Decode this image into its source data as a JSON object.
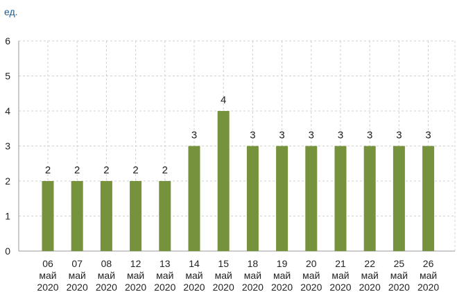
{
  "unit": "ед.",
  "chart_data": {
    "type": "bar",
    "categories": [
      [
        "06",
        "май",
        "2020"
      ],
      [
        "07",
        "май",
        "2020"
      ],
      [
        "08",
        "май",
        "2020"
      ],
      [
        "12",
        "май",
        "2020"
      ],
      [
        "13",
        "май",
        "2020"
      ],
      [
        "14",
        "май",
        "2020"
      ],
      [
        "15",
        "май",
        "2020"
      ],
      [
        "18",
        "май",
        "2020"
      ],
      [
        "19",
        "май",
        "2020"
      ],
      [
        "20",
        "май",
        "2020"
      ],
      [
        "21",
        "май",
        "2020"
      ],
      [
        "22",
        "май",
        "2020"
      ],
      [
        "25",
        "май",
        "2020"
      ],
      [
        "26",
        "май",
        "2020"
      ]
    ],
    "values": [
      2,
      2,
      2,
      2,
      2,
      3,
      4,
      3,
      3,
      3,
      3,
      3,
      3,
      3
    ],
    "ylim": [
      0,
      6
    ],
    "yticks": [
      0,
      1,
      2,
      3,
      4,
      5,
      6
    ],
    "grid": true,
    "data_labels": true,
    "bar_color": "#76923c",
    "grid_color": "#d0d0d0",
    "axis_color": "#999999"
  }
}
